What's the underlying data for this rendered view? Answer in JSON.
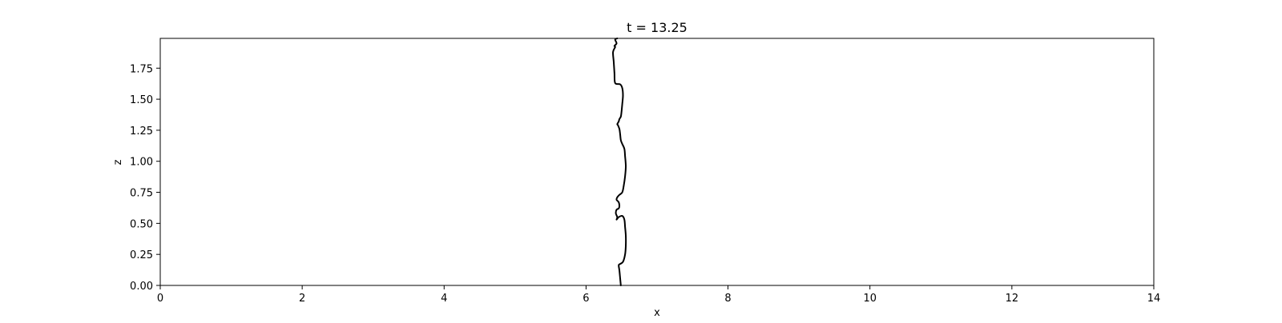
{
  "chart_data": {
    "type": "line",
    "title": "t = 13.25",
    "xlabel": "x",
    "ylabel": "z",
    "xlim": [
      0,
      14
    ],
    "ylim": [
      0,
      1.99
    ],
    "grid": false,
    "xticks": [
      0,
      2,
      4,
      6,
      8,
      10,
      12,
      14
    ],
    "xtick_labels": [
      "0",
      "2",
      "4",
      "6",
      "8",
      "10",
      "12",
      "14"
    ],
    "yticks": [
      0,
      0.25,
      0.5,
      0.75,
      1.0,
      1.25,
      1.5,
      1.75
    ],
    "ytick_labels": [
      "0.00",
      "0.25",
      "0.50",
      "0.75",
      "1.00",
      "1.25",
      "1.50",
      "1.75"
    ],
    "series": [
      {
        "color": "#000000",
        "x": [
          6.49,
          6.48,
          6.47,
          6.46,
          6.47,
          6.52,
          6.55,
          6.56,
          6.56,
          6.55,
          6.54,
          6.51,
          6.46,
          6.43,
          6.44,
          6.42,
          6.43,
          6.46,
          6.47,
          6.46,
          6.43,
          6.44,
          6.47,
          6.51,
          6.53,
          6.55,
          6.56,
          6.55,
          6.54,
          6.51,
          6.49,
          6.48,
          6.47,
          6.45,
          6.44,
          6.46,
          6.47,
          6.49,
          6.5,
          6.51,
          6.52,
          6.51,
          6.48,
          6.41,
          6.4,
          6.39,
          6.38,
          6.41,
          6.4,
          6.43,
          6.41,
          6.44
        ],
        "y": [
          0.0,
          0.06,
          0.12,
          0.16,
          0.17,
          0.19,
          0.25,
          0.32,
          0.4,
          0.47,
          0.53,
          0.56,
          0.55,
          0.53,
          0.55,
          0.58,
          0.61,
          0.62,
          0.64,
          0.67,
          0.69,
          0.71,
          0.73,
          0.75,
          0.8,
          0.88,
          0.96,
          1.04,
          1.1,
          1.14,
          1.17,
          1.22,
          1.26,
          1.29,
          1.3,
          1.32,
          1.34,
          1.36,
          1.4,
          1.46,
          1.53,
          1.59,
          1.62,
          1.63,
          1.71,
          1.8,
          1.88,
          1.92,
          1.93,
          1.95,
          1.98,
          1.99
        ]
      }
    ]
  }
}
